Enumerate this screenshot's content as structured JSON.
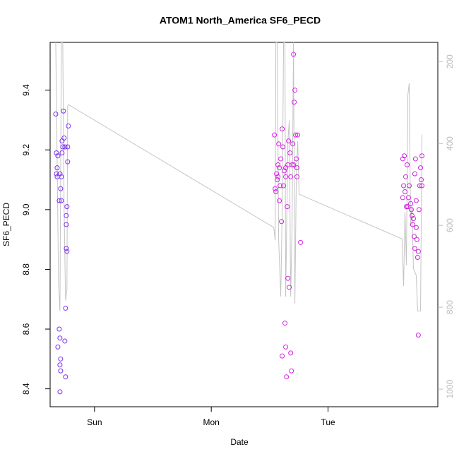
{
  "chart_data": {
    "type": "scatter",
    "title": "ATOM1 North_America SF6_PECD",
    "xlabel": "Date",
    "ylabel": "SF6_PECD",
    "x": [
      -0.332,
      -0.326,
      -0.314,
      -0.32,
      -0.326,
      -0.32,
      -0.296,
      -0.284,
      -0.29,
      -0.302,
      -0.284,
      -0.278,
      -0.272,
      -0.266,
      -0.26,
      -0.254,
      -0.23,
      -0.224,
      -0.23,
      -0.236,
      -0.242,
      -0.242,
      -0.242,
      -0.236,
      -0.248,
      -0.302,
      -0.296,
      -0.314,
      -0.29,
      -0.296,
      -0.29,
      -0.254,
      -0.248,
      -0.296,
      -0.278,
      1.541,
      1.547,
      1.553,
      1.559,
      1.565,
      1.571,
      1.577,
      1.583,
      1.589,
      1.595,
      1.601,
      1.607,
      1.613,
      1.619,
      1.625,
      1.631,
      1.637,
      1.644,
      1.65,
      1.656,
      1.662,
      1.668,
      1.674,
      1.68,
      1.686,
      1.692,
      1.698,
      1.704,
      1.71,
      1.716,
      1.722,
      1.728,
      1.734,
      1.74,
      1.734,
      1.764,
      1.607,
      1.571,
      1.583,
      1.637,
      1.656,
      1.68,
      1.704,
      1.637,
      2.64,
      2.653,
      2.647,
      2.659,
      2.665,
      2.671,
      2.677,
      2.683,
      2.689,
      2.695,
      2.707,
      2.713,
      2.719,
      2.725,
      2.731,
      2.737,
      2.743,
      2.749,
      2.755,
      2.761,
      2.767,
      2.773,
      2.779,
      2.785,
      2.792,
      2.804,
      2.804,
      2.798,
      2.64,
      2.743,
      2.755,
      2.773
    ],
    "values": [
      9.32,
      9.19,
      9.18,
      9.14,
      9.12,
      9.11,
      9.12,
      9.11,
      9.07,
      9.03,
      9.03,
      9.23,
      9.21,
      9.33,
      9.24,
      9.21,
      9.21,
      9.28,
      9.16,
      9.01,
      8.98,
      8.95,
      8.87,
      8.86,
      8.67,
      8.6,
      8.57,
      8.54,
      8.5,
      8.48,
      8.46,
      8.56,
      8.44,
      8.39,
      9.19,
      9.25,
      9.07,
      9.06,
      9.12,
      9.1,
      9.15,
      9.22,
      9.03,
      9.08,
      9.17,
      8.96,
      9.27,
      9.21,
      9.08,
      9.13,
      8.62,
      8.54,
      8.44,
      9.01,
      8.77,
      9.23,
      8.74,
      9.19,
      8.52,
      8.46,
      9.15,
      9.22,
      9.52,
      9.36,
      9.4,
      9.25,
      9.17,
      9.11,
      9.25,
      9.14,
      8.89,
      8.51,
      9.11,
      9.14,
      9.14,
      9.15,
      9.11,
      9.15,
      9.11,
      9.17,
      9.18,
      9.08,
      9.06,
      9.11,
      9.01,
      9.15,
      9.01,
      9.04,
      9.08,
      9.02,
      9,
      8.98,
      8.95,
      8.97,
      8.91,
      8.87,
      9.17,
      8.94,
      8.9,
      8.84,
      8.58,
      9,
      9.08,
      9.14,
      9.08,
      9.18,
      9.1,
      9.04,
      9.12,
      9.03,
      8.86
    ],
    "colors": [
      "#7b2ff0",
      "#7b2ff0",
      "#7b2ff0",
      "#7b2ff0",
      "#7b2ff0",
      "#7b2ff0",
      "#7b2ff0",
      "#7b2ff0",
      "#7b2ff0",
      "#7b2ff0",
      "#7b2ff0",
      "#7b2ff0",
      "#7b2ff0",
      "#7b2ff0",
      "#7b2ff0",
      "#7b2ff0",
      "#7b2ff0",
      "#7b2ff0",
      "#7b2ff0",
      "#7b2ff0",
      "#7b2ff0",
      "#7b2ff0",
      "#7b2ff0",
      "#7b2ff0",
      "#7b2ff0",
      "#7b2ff0",
      "#7b2ff0",
      "#7b2ff0",
      "#7b2ff0",
      "#7b2ff0",
      "#7b2ff0",
      "#7b2ff0",
      "#7b2ff0",
      "#7b2ff0",
      "#7b2ff0",
      "#d91fe6",
      "#d91fe6",
      "#d91fe6",
      "#d91fe6",
      "#d91fe6",
      "#d91fe6",
      "#d91fe6",
      "#d91fe6",
      "#d91fe6",
      "#d91fe6",
      "#d91fe6",
      "#d91fe6",
      "#d91fe6",
      "#d91fe6",
      "#d91fe6",
      "#d91fe6",
      "#d91fe6",
      "#d91fe6",
      "#d91fe6",
      "#d91fe6",
      "#d91fe6",
      "#d91fe6",
      "#d91fe6",
      "#d91fe6",
      "#d91fe6",
      "#d91fe6",
      "#d91fe6",
      "#d91fe6",
      "#d91fe6",
      "#d91fe6",
      "#d91fe6",
      "#d91fe6",
      "#d91fe6",
      "#d91fe6",
      "#d91fe6",
      "#d91fe6",
      "#d91fe6",
      "#d91fe6",
      "#d91fe6",
      "#d91fe6",
      "#d91fe6",
      "#d91fe6",
      "#d91fe6",
      "#d91fe6",
      "#cf20e0",
      "#cf20e0",
      "#cf20e0",
      "#cf20e0",
      "#cf20e0",
      "#cf20e0",
      "#cf20e0",
      "#cf20e0",
      "#cf20e0",
      "#cf20e0",
      "#cf20e0",
      "#cf20e0",
      "#cf20e0",
      "#cf20e0",
      "#cf20e0",
      "#cf20e0",
      "#cf20e0",
      "#cf20e0",
      "#cf20e0",
      "#cf20e0",
      "#cf20e0",
      "#cf20e0",
      "#cf20e0",
      "#cf20e0",
      "#cf20e0",
      "#cf20e0",
      "#cf20e0",
      "#cf20e0",
      "#cf20e0",
      "#cf20e0",
      "#cf20e0",
      "#cf20e0"
    ],
    "line": {
      "axis": "y2",
      "color": "#c4c4c4",
      "x": [
        -0.332,
        -0.308,
        -0.296,
        -0.284,
        -0.272,
        -0.26,
        -0.248,
        -0.236,
        -0.23,
        -0.224,
        1.535,
        1.547,
        1.553,
        1.565,
        1.577,
        1.595,
        1.607,
        1.619,
        1.631,
        1.637,
        1.656,
        1.668,
        1.68,
        1.692,
        1.704,
        1.716,
        1.728,
        1.74,
        1.752,
        2.634,
        2.647,
        2.659,
        2.671,
        2.683,
        2.695,
        2.707,
        2.719,
        2.731,
        2.755,
        2.767,
        2.792,
        2.804
      ],
      "values": [
        153,
        740,
        809,
        153,
        153,
        567,
        783,
        757,
        309,
        305,
        605,
        636,
        153,
        153,
        636,
        774,
        567,
        153,
        153,
        774,
        395,
        343,
        774,
        602,
        153,
        791,
        481,
        395,
        524,
        633,
        748,
        567,
        697,
        283,
        253,
        602,
        550,
        705,
        722,
        809,
        809,
        378
      ]
    },
    "xlim": [
      -0.38,
      2.94
    ],
    "xticks": [
      {
        "value": 0,
        "label": "Sun"
      },
      {
        "value": 1,
        "label": "Mon"
      },
      {
        "value": 2,
        "label": "Tue"
      }
    ],
    "ylim": [
      8.34,
      9.56
    ],
    "yticks": [
      8.4,
      8.6,
      8.8,
      {
        "value": 9,
        "label": "9.0"
      },
      9.2,
      9.4
    ],
    "y2lim": [
      1043,
      153
    ],
    "y2ticks": [
      200,
      400,
      600,
      800,
      1000
    ],
    "y2_tick_color": "#bbbbbb"
  }
}
